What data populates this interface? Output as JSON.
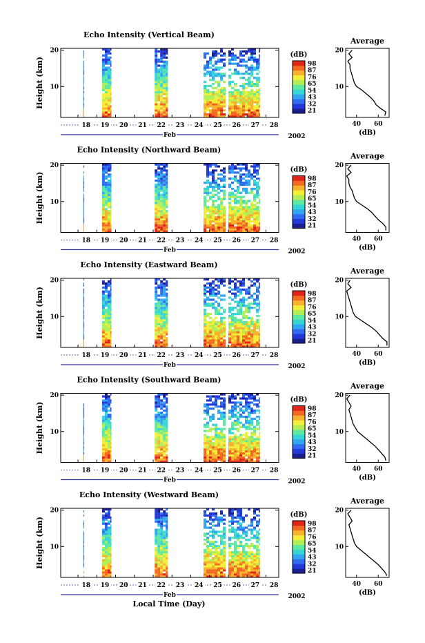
{
  "figure": {
    "x_axis_label": "Local Time (Day)",
    "month_label": "Feb",
    "year_label": "2002",
    "colorbar_unit": "(dB)",
    "average_title": "Average",
    "average_xlabel": "(dB)"
  },
  "chart_data": [
    {
      "type": "heatmap",
      "title": "Echo Intensity (Vertical Beam)",
      "ylabel": "Height (km)",
      "xlabel": "Local Time (Day)",
      "x_ticks": [
        "18",
        "19",
        "20",
        "21",
        "22",
        "23",
        "24",
        "25",
        "26",
        "27",
        "28"
      ],
      "y_ticks": [
        10,
        20
      ],
      "ylim": [
        1.5,
        20.5
      ],
      "colorbar": {
        "unit": "(dB)",
        "ticks": [
          21,
          32,
          43,
          54,
          65,
          76,
          87,
          98
        ]
      },
      "data_blocks_days": [
        [
          18.2,
          18.25
        ],
        [
          19.2,
          19.7
        ],
        [
          22.0,
          22.7
        ],
        [
          24.6,
          27.6
        ]
      ],
      "gap_days": [
        [
          25.75,
          25.9
        ]
      ],
      "average_profile": {
        "title": "Average",
        "xlabel": "(dB)",
        "xlim": [
          30,
          70
        ],
        "x_ticks": [
          40,
          60
        ],
        "y_ticks": [
          10,
          20
        ],
        "height_km": [
          20,
          19,
          18,
          17,
          16,
          15,
          14,
          13,
          12,
          11,
          10,
          9,
          8,
          7,
          6,
          5,
          4,
          3,
          2
        ],
        "intensity_db": [
          36,
          33,
          36,
          32,
          34,
          34,
          35,
          36,
          37,
          38,
          40,
          45,
          49,
          53,
          56,
          58,
          62,
          67,
          66
        ]
      }
    },
    {
      "type": "heatmap",
      "title": "Echo Intensity (Northward Beam)",
      "ylabel": "Height (km)",
      "xlabel": "Local Time (Day)",
      "x_ticks": [
        "18",
        "19",
        "20",
        "21",
        "22",
        "23",
        "24",
        "25",
        "26",
        "27",
        "28"
      ],
      "y_ticks": [
        10,
        20
      ],
      "ylim": [
        1.5,
        20.5
      ],
      "colorbar": {
        "unit": "(dB)",
        "ticks": [
          21,
          32,
          43,
          54,
          65,
          76,
          87,
          98
        ]
      },
      "data_blocks_days": [
        [
          18.2,
          18.25
        ],
        [
          19.2,
          19.7
        ],
        [
          22.0,
          22.7
        ],
        [
          24.6,
          27.6
        ]
      ],
      "gap_days": [
        [
          25.75,
          25.9
        ]
      ],
      "average_profile": {
        "title": "Average",
        "xlabel": "(dB)",
        "xlim": [
          30,
          70
        ],
        "x_ticks": [
          40,
          60
        ],
        "y_ticks": [
          10,
          20
        ],
        "height_km": [
          20,
          19,
          18,
          17,
          16,
          15,
          14,
          13,
          12,
          11,
          10,
          9,
          8,
          7,
          6,
          5,
          4,
          3,
          2
        ],
        "intensity_db": [
          35,
          32,
          35,
          31,
          33,
          33,
          34,
          36,
          37,
          38,
          40,
          45,
          50,
          54,
          57,
          60,
          64,
          67,
          67
        ]
      }
    },
    {
      "type": "heatmap",
      "title": "Echo Intensity (Eastward Beam)",
      "ylabel": "Height (km)",
      "xlabel": "Local Time (Day)",
      "x_ticks": [
        "18",
        "19",
        "20",
        "21",
        "22",
        "23",
        "24",
        "25",
        "26",
        "27",
        "28"
      ],
      "y_ticks": [
        10,
        20
      ],
      "ylim": [
        1.5,
        20.5
      ],
      "colorbar": {
        "unit": "(dB)",
        "ticks": [
          21,
          32,
          43,
          54,
          65,
          76,
          87,
          98
        ]
      },
      "data_blocks_days": [
        [
          18.2,
          18.25
        ],
        [
          19.2,
          19.7
        ],
        [
          22.0,
          22.7
        ],
        [
          24.6,
          27.6
        ]
      ],
      "gap_days": [
        [
          25.75,
          25.9
        ]
      ],
      "average_profile": {
        "title": "Average",
        "xlabel": "(dB)",
        "xlim": [
          30,
          70
        ],
        "x_ticks": [
          40,
          60
        ],
        "y_ticks": [
          10,
          20
        ],
        "height_km": [
          20,
          19,
          18,
          17,
          16,
          15,
          14,
          13,
          12,
          11,
          10,
          9,
          8,
          7,
          6,
          5,
          4,
          3,
          2
        ],
        "intensity_db": [
          34,
          32,
          35,
          31,
          32,
          33,
          34,
          35,
          36,
          37,
          39,
          44,
          49,
          54,
          58,
          61,
          64,
          68,
          68
        ]
      }
    },
    {
      "type": "heatmap",
      "title": "Echo Intensity (Southward Beam)",
      "ylabel": "Height (km)",
      "xlabel": "Local Time (Day)",
      "x_ticks": [
        "18",
        "19",
        "20",
        "21",
        "22",
        "23",
        "24",
        "25",
        "26",
        "27",
        "28"
      ],
      "y_ticks": [
        10,
        20
      ],
      "ylim": [
        1.5,
        20.5
      ],
      "colorbar": {
        "unit": "(dB)",
        "ticks": [
          21,
          32,
          43,
          54,
          65,
          76,
          87,
          98
        ]
      },
      "data_blocks_days": [
        [
          18.2,
          18.25
        ],
        [
          19.2,
          19.7
        ],
        [
          22.0,
          22.7
        ],
        [
          24.6,
          27.6
        ]
      ],
      "gap_days": [
        [
          25.75,
          25.9
        ]
      ],
      "average_profile": {
        "title": "Average",
        "xlabel": "(dB)",
        "xlim": [
          30,
          70
        ],
        "x_ticks": [
          40,
          60
        ],
        "y_ticks": [
          10,
          20
        ],
        "height_km": [
          20,
          19,
          18,
          17,
          16,
          15,
          14,
          13,
          12,
          11,
          10,
          9,
          8,
          7,
          6,
          5,
          4,
          3,
          2
        ],
        "intensity_db": [
          34,
          31,
          33,
          35,
          33,
          34,
          35,
          36,
          37,
          39,
          41,
          45,
          49,
          53,
          57,
          60,
          63,
          66,
          67
        ]
      }
    },
    {
      "type": "heatmap",
      "title": "Echo Intensity (Westward Beam)",
      "ylabel": "Height (km)",
      "xlabel": "Local Time (Day)",
      "x_ticks": [
        "18",
        "19",
        "20",
        "21",
        "22",
        "23",
        "24",
        "25",
        "26",
        "27",
        "28"
      ],
      "y_ticks": [
        10,
        20
      ],
      "ylim": [
        1.5,
        20.5
      ],
      "colorbar": {
        "unit": "(dB)",
        "ticks": [
          21,
          32,
          43,
          54,
          65,
          76,
          87,
          98
        ]
      },
      "data_blocks_days": [
        [
          18.2,
          18.25
        ],
        [
          19.2,
          19.7
        ],
        [
          22.0,
          22.7
        ],
        [
          24.6,
          27.6
        ]
      ],
      "gap_days": [
        [
          25.75,
          25.9
        ]
      ],
      "average_profile": {
        "title": "Average",
        "xlabel": "(dB)",
        "xlim": [
          30,
          70
        ],
        "x_ticks": [
          40,
          60
        ],
        "y_ticks": [
          10,
          20
        ],
        "height_km": [
          20,
          19,
          18,
          17,
          16,
          15,
          14,
          13,
          12,
          11,
          10,
          9,
          8,
          7,
          6,
          5,
          4,
          3,
          2
        ],
        "intensity_db": [
          35,
          32,
          34,
          36,
          33,
          34,
          35,
          36,
          37,
          38,
          40,
          44,
          48,
          52,
          56,
          60,
          63,
          66,
          68
        ]
      }
    }
  ],
  "colormap": [
    "#1a1f8f",
    "#2438d8",
    "#2f6cf0",
    "#33a6f2",
    "#36d6d6",
    "#5ee8a0",
    "#b2ee55",
    "#f2ee3a",
    "#f7b22e",
    "#f26a22",
    "#e02418"
  ]
}
